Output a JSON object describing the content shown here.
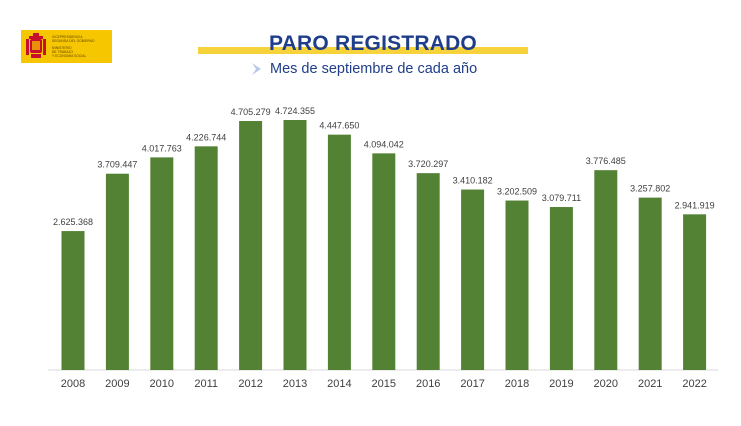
{
  "header": {
    "logo_lines": [
      "VICEPRESIDENCIA",
      "SEGUNDA DEL GOBIERNO",
      "MINISTERIO",
      "DE TRABAJO",
      "Y ECONOMÍA SOCIAL"
    ],
    "title": "PARO REGISTRADO",
    "subtitle": "Mes de septiembre de cada año"
  },
  "colors": {
    "bar": "#548235",
    "title": "#1f3d8a",
    "accent": "#f6c700"
  },
  "chart_data": {
    "type": "bar",
    "categories": [
      "2008",
      "2009",
      "2010",
      "2011",
      "2012",
      "2013",
      "2014",
      "2015",
      "2016",
      "2017",
      "2018",
      "2019",
      "2020",
      "2021",
      "2022"
    ],
    "values": [
      2625368,
      3709447,
      4017763,
      4226744,
      4705279,
      4724355,
      4447650,
      4094042,
      3720297,
      3410182,
      3202509,
      3079711,
      3776485,
      3257802,
      2941919
    ],
    "labels": [
      "2.625.368",
      "3.709.447",
      "4.017.763",
      "4.226.744",
      "4.705.279",
      "4.724.355",
      "4.447.650",
      "4.094.042",
      "3.720.297",
      "3.410.182",
      "3.202.509",
      "3.079.711",
      "3.776.485",
      "3.257.802",
      "2.941.919"
    ],
    "title": "PARO REGISTRADO",
    "subtitle": "Mes de septiembre de cada año",
    "xlabel": "",
    "ylabel": "",
    "ylim": [
      0,
      4724355
    ],
    "grid": false,
    "legend": "none"
  }
}
